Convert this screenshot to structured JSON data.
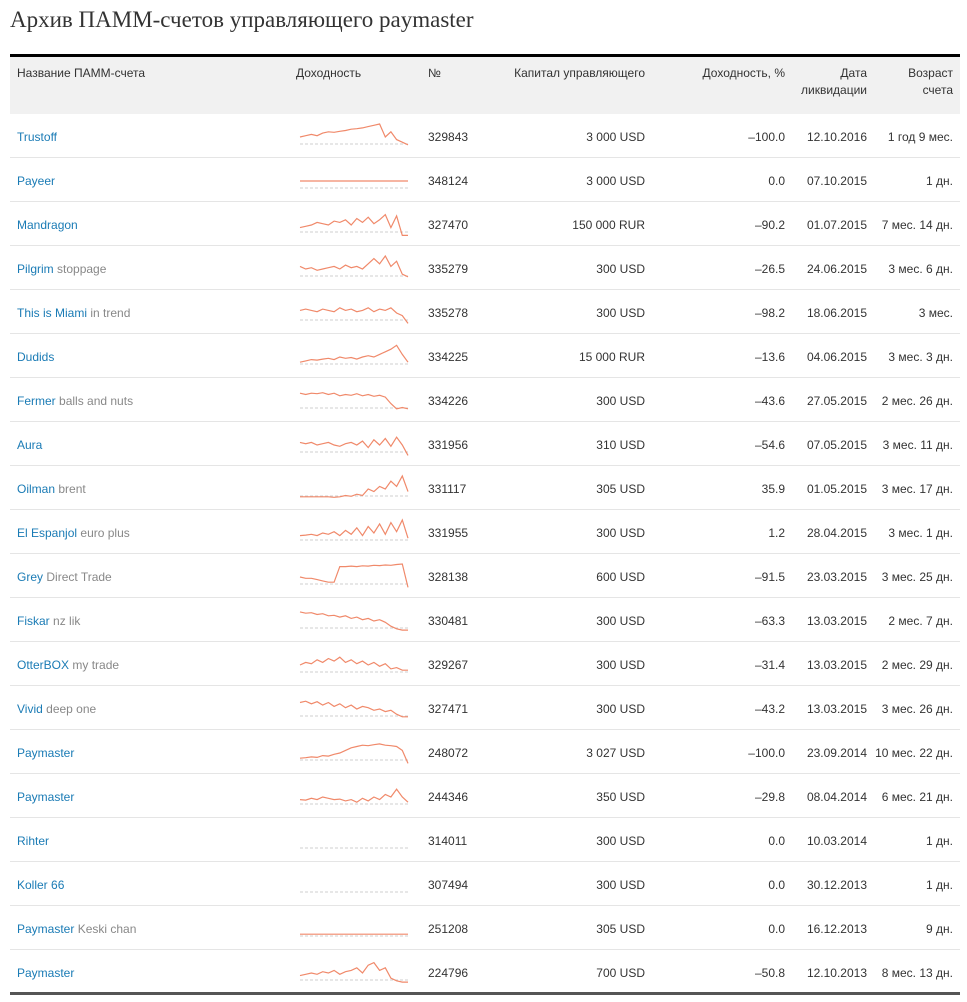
{
  "page": {
    "title": "Архив ПАММ-счетов управляющего paymaster"
  },
  "table": {
    "headers": {
      "name": "Название ПАММ-счета",
      "chart": "Доходность",
      "number": "№",
      "capital": "Капитал управляющего",
      "yield": "Доходность, %",
      "liquidation_line1": "Дата",
      "liquidation_line2": "ликвидации",
      "age_line1": "Возраст",
      "age_line2": "счета"
    },
    "colors": {
      "link": "#1a7bb5",
      "sparkline": "#f0896a",
      "baseline": "#cfcfcf"
    },
    "rows": [
      {
        "name": "Trustoff",
        "sub": "",
        "number": "329843",
        "capital": "3 000 USD",
        "yield": "–100.0",
        "date": "12.10.2016",
        "age": "1 год 9 мес.",
        "spark": [
          0.5,
          0.55,
          0.6,
          0.55,
          0.65,
          0.7,
          0.68,
          0.72,
          0.75,
          0.8,
          0.82,
          0.85,
          0.9,
          0.95,
          1.0,
          0.5,
          0.7,
          0.4,
          0.3,
          0.2
        ]
      },
      {
        "name": "Payeer",
        "sub": "",
        "number": "348124",
        "capital": "3 000 USD",
        "yield": "0.0",
        "date": "07.10.2015",
        "age": "1 дн.",
        "spark": [
          0.5,
          0.5,
          0.5,
          0.5,
          0.5,
          0.5,
          0.5,
          0.5,
          0.5,
          0.5
        ]
      },
      {
        "name": "Mandragon",
        "sub": "",
        "number": "327470",
        "capital": "150 000 RUR",
        "yield": "–90.2",
        "date": "01.07.2015",
        "age": "7 мес. 14 дн.",
        "spark": [
          0.4,
          0.45,
          0.5,
          0.6,
          0.55,
          0.5,
          0.65,
          0.6,
          0.7,
          0.5,
          0.75,
          0.6,
          0.8,
          0.55,
          0.7,
          0.9,
          0.4,
          0.85,
          0.1,
          0.1
        ]
      },
      {
        "name": "Pilgrim",
        "sub": "stoppage",
        "number": "335279",
        "capital": "300 USD",
        "yield": "–26.5",
        "date": "24.06.2015",
        "age": "3 мес. 6 дн.",
        "spark": [
          0.6,
          0.5,
          0.55,
          0.45,
          0.5,
          0.55,
          0.6,
          0.5,
          0.65,
          0.55,
          0.6,
          0.5,
          0.7,
          0.9,
          0.7,
          1.0,
          0.6,
          0.8,
          0.3,
          0.2
        ]
      },
      {
        "name": "This is Miami",
        "sub": "in trend",
        "number": "335278",
        "capital": "300 USD",
        "yield": "–98.2",
        "date": "18.06.2015",
        "age": "3 мес.",
        "spark": [
          0.6,
          0.65,
          0.6,
          0.55,
          0.65,
          0.6,
          0.55,
          0.7,
          0.6,
          0.65,
          0.55,
          0.6,
          0.7,
          0.55,
          0.65,
          0.6,
          0.7,
          0.5,
          0.4,
          0.1
        ]
      },
      {
        "name": "Dudids",
        "sub": "",
        "number": "334225",
        "capital": "15 000 RUR",
        "yield": "–13.6",
        "date": "04.06.2015",
        "age": "3 мес. 3 дн.",
        "spark": [
          0.3,
          0.35,
          0.4,
          0.38,
          0.42,
          0.45,
          0.4,
          0.5,
          0.45,
          0.48,
          0.42,
          0.5,
          0.55,
          0.5,
          0.6,
          0.7,
          0.8,
          0.95,
          0.6,
          0.3
        ]
      },
      {
        "name": "Fermer",
        "sub": "balls and nuts",
        "number": "334226",
        "capital": "300 USD",
        "yield": "–43.6",
        "date": "27.05.2015",
        "age": "2 мес. 26 дн.",
        "spark": [
          0.8,
          0.75,
          0.8,
          0.78,
          0.82,
          0.75,
          0.8,
          0.7,
          0.75,
          0.72,
          0.78,
          0.7,
          0.75,
          0.68,
          0.72,
          0.65,
          0.4,
          0.2,
          0.25,
          0.2
        ]
      },
      {
        "name": "Aura",
        "sub": "",
        "number": "331956",
        "capital": "310 USD",
        "yield": "–54.6",
        "date": "07.05.2015",
        "age": "3 мес. 11 дн.",
        "spark": [
          0.6,
          0.55,
          0.6,
          0.5,
          0.55,
          0.6,
          0.5,
          0.45,
          0.55,
          0.6,
          0.5,
          0.65,
          0.4,
          0.7,
          0.5,
          0.75,
          0.45,
          0.8,
          0.5,
          0.1
        ]
      },
      {
        "name": "Oilman",
        "sub": "brent",
        "number": "331117",
        "capital": "305 USD",
        "yield": "35.9",
        "date": "01.05.2015",
        "age": "3 мес. 17 дн.",
        "spark": [
          0.2,
          0.2,
          0.2,
          0.2,
          0.2,
          0.2,
          0.18,
          0.2,
          0.25,
          0.22,
          0.3,
          0.25,
          0.5,
          0.4,
          0.6,
          0.5,
          0.8,
          0.6,
          1.0,
          0.4
        ]
      },
      {
        "name": "El Espanjol",
        "sub": "euro plus",
        "number": "331955",
        "capital": "300 USD",
        "yield": "1.2",
        "date": "28.04.2015",
        "age": "3 мес. 1 дн.",
        "spark": [
          0.4,
          0.42,
          0.45,
          0.4,
          0.5,
          0.45,
          0.55,
          0.4,
          0.6,
          0.45,
          0.7,
          0.4,
          0.75,
          0.5,
          0.85,
          0.45,
          0.9,
          0.55,
          1.0,
          0.3
        ]
      },
      {
        "name": "Grey",
        "sub": "Direct Trade",
        "number": "328138",
        "capital": "600 USD",
        "yield": "–91.5",
        "date": "23.03.2015",
        "age": "3 мес. 25 дн.",
        "spark": [
          0.5,
          0.45,
          0.45,
          0.4,
          0.35,
          0.3,
          0.3,
          0.9,
          0.9,
          0.92,
          0.9,
          0.93,
          0.92,
          0.95,
          0.94,
          0.96,
          0.95,
          0.98,
          1.0,
          0.1
        ]
      },
      {
        "name": "Fiskar",
        "sub": "nz lik",
        "number": "330481",
        "capital": "300 USD",
        "yield": "–63.3",
        "date": "13.03.2015",
        "age": "2 мес. 7 дн.",
        "spark": [
          0.85,
          0.8,
          0.82,
          0.75,
          0.78,
          0.7,
          0.72,
          0.65,
          0.7,
          0.6,
          0.65,
          0.55,
          0.6,
          0.5,
          0.55,
          0.45,
          0.3,
          0.2,
          0.15,
          0.15
        ]
      },
      {
        "name": "OtterBOX",
        "sub": "my trade",
        "number": "329267",
        "capital": "300 USD",
        "yield": "–31.4",
        "date": "13.03.2015",
        "age": "2 мес. 29 дн.",
        "spark": [
          0.5,
          0.6,
          0.55,
          0.7,
          0.6,
          0.75,
          0.65,
          0.8,
          0.6,
          0.7,
          0.55,
          0.65,
          0.5,
          0.6,
          0.45,
          0.55,
          0.35,
          0.4,
          0.3,
          0.3
        ]
      },
      {
        "name": "Vivid",
        "sub": "deep one",
        "number": "327471",
        "capital": "300 USD",
        "yield": "–43.2",
        "date": "13.03.2015",
        "age": "3 мес. 26 дн.",
        "spark": [
          0.75,
          0.8,
          0.7,
          0.78,
          0.65,
          0.75,
          0.6,
          0.7,
          0.55,
          0.65,
          0.5,
          0.6,
          0.55,
          0.45,
          0.5,
          0.4,
          0.45,
          0.3,
          0.2,
          0.2
        ]
      },
      {
        "name": "Paymaster",
        "sub": "",
        "number": "248072",
        "capital": "3 027 USD",
        "yield": "–100.0",
        "date": "23.09.2014",
        "age": "10 мес. 22 дн.",
        "spark": [
          0.3,
          0.32,
          0.35,
          0.33,
          0.4,
          0.38,
          0.45,
          0.5,
          0.6,
          0.7,
          0.75,
          0.8,
          0.78,
          0.82,
          0.85,
          0.8,
          0.78,
          0.75,
          0.6,
          0.1
        ]
      },
      {
        "name": "Paymaster",
        "sub": "",
        "number": "244346",
        "capital": "350 USD",
        "yield": "–29.8",
        "date": "08.04.2014",
        "age": "6 мес. 21 дн.",
        "spark": [
          0.4,
          0.38,
          0.45,
          0.4,
          0.5,
          0.45,
          0.4,
          0.42,
          0.35,
          0.4,
          0.3,
          0.45,
          0.35,
          0.5,
          0.4,
          0.6,
          0.5,
          0.8,
          0.5,
          0.3
        ]
      },
      {
        "name": "Rihter",
        "sub": "",
        "number": "314011",
        "capital": "300 USD",
        "yield": "0.0",
        "date": "10.03.2014",
        "age": "1 дн.",
        "spark": []
      },
      {
        "name": "Koller 66",
        "sub": "",
        "number": "307494",
        "capital": "300 USD",
        "yield": "0.0",
        "date": "30.12.2013",
        "age": "1 дн.",
        "spark": []
      },
      {
        "name": "Paymaster",
        "sub": "Keski chan",
        "number": "251208",
        "capital": "305 USD",
        "yield": "0.0",
        "date": "16.12.2013",
        "age": "9 дн.",
        "spark": [
          0.3,
          0.3,
          0.3,
          0.3,
          0.3,
          0.3,
          0.3,
          0.3,
          0.3,
          0.3
        ]
      },
      {
        "name": "Paymaster",
        "sub": "",
        "number": "224796",
        "capital": "700 USD",
        "yield": "–50.8",
        "date": "12.10.2013",
        "age": "8 мес. 13 дн.",
        "spark": [
          0.4,
          0.45,
          0.5,
          0.45,
          0.55,
          0.5,
          0.6,
          0.45,
          0.55,
          0.6,
          0.7,
          0.5,
          0.8,
          0.9,
          0.6,
          0.7,
          0.3,
          0.2,
          0.15,
          0.15
        ]
      }
    ]
  }
}
